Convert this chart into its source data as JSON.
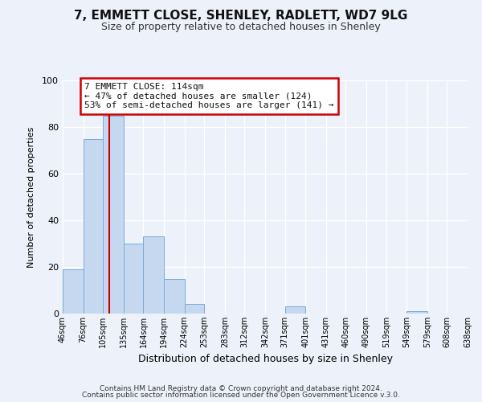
{
  "title": "7, EMMETT CLOSE, SHENLEY, RADLETT, WD7 9LG",
  "subtitle": "Size of property relative to detached houses in Shenley",
  "xlabel": "Distribution of detached houses by size in Shenley",
  "ylabel": "Number of detached properties",
  "bar_edges": [
    46,
    76,
    105,
    135,
    164,
    194,
    224,
    253,
    283,
    312,
    342,
    371,
    401,
    431,
    460,
    490,
    519,
    549,
    579,
    608,
    638
  ],
  "bar_heights": [
    19,
    75,
    85,
    30,
    33,
    15,
    4,
    0,
    0,
    0,
    0,
    3,
    0,
    0,
    0,
    0,
    0,
    1,
    0,
    0
  ],
  "bar_color": "#c5d8f0",
  "bar_edgecolor": "#7aabd4",
  "ylim": [
    0,
    100
  ],
  "yticks": [
    0,
    20,
    40,
    60,
    80,
    100
  ],
  "vline_x": 114,
  "vline_color": "#cc0000",
  "annotation_title": "7 EMMETT CLOSE: 114sqm",
  "annotation_line1": "← 47% of detached houses are smaller (124)",
  "annotation_line2": "53% of semi-detached houses are larger (141) →",
  "annotation_box_facecolor": "#ffffff",
  "annotation_box_edgecolor": "#cc0000",
  "footer1": "Contains HM Land Registry data © Crown copyright and database right 2024.",
  "footer2": "Contains public sector information licensed under the Open Government Licence v.3.0.",
  "background_color": "#edf2fa",
  "plot_background": "#edf2fa",
  "tick_labels": [
    "46sqm",
    "76sqm",
    "105sqm",
    "135sqm",
    "164sqm",
    "194sqm",
    "224sqm",
    "253sqm",
    "283sqm",
    "312sqm",
    "342sqm",
    "371sqm",
    "401sqm",
    "431sqm",
    "460sqm",
    "490sqm",
    "519sqm",
    "549sqm",
    "579sqm",
    "608sqm",
    "638sqm"
  ]
}
